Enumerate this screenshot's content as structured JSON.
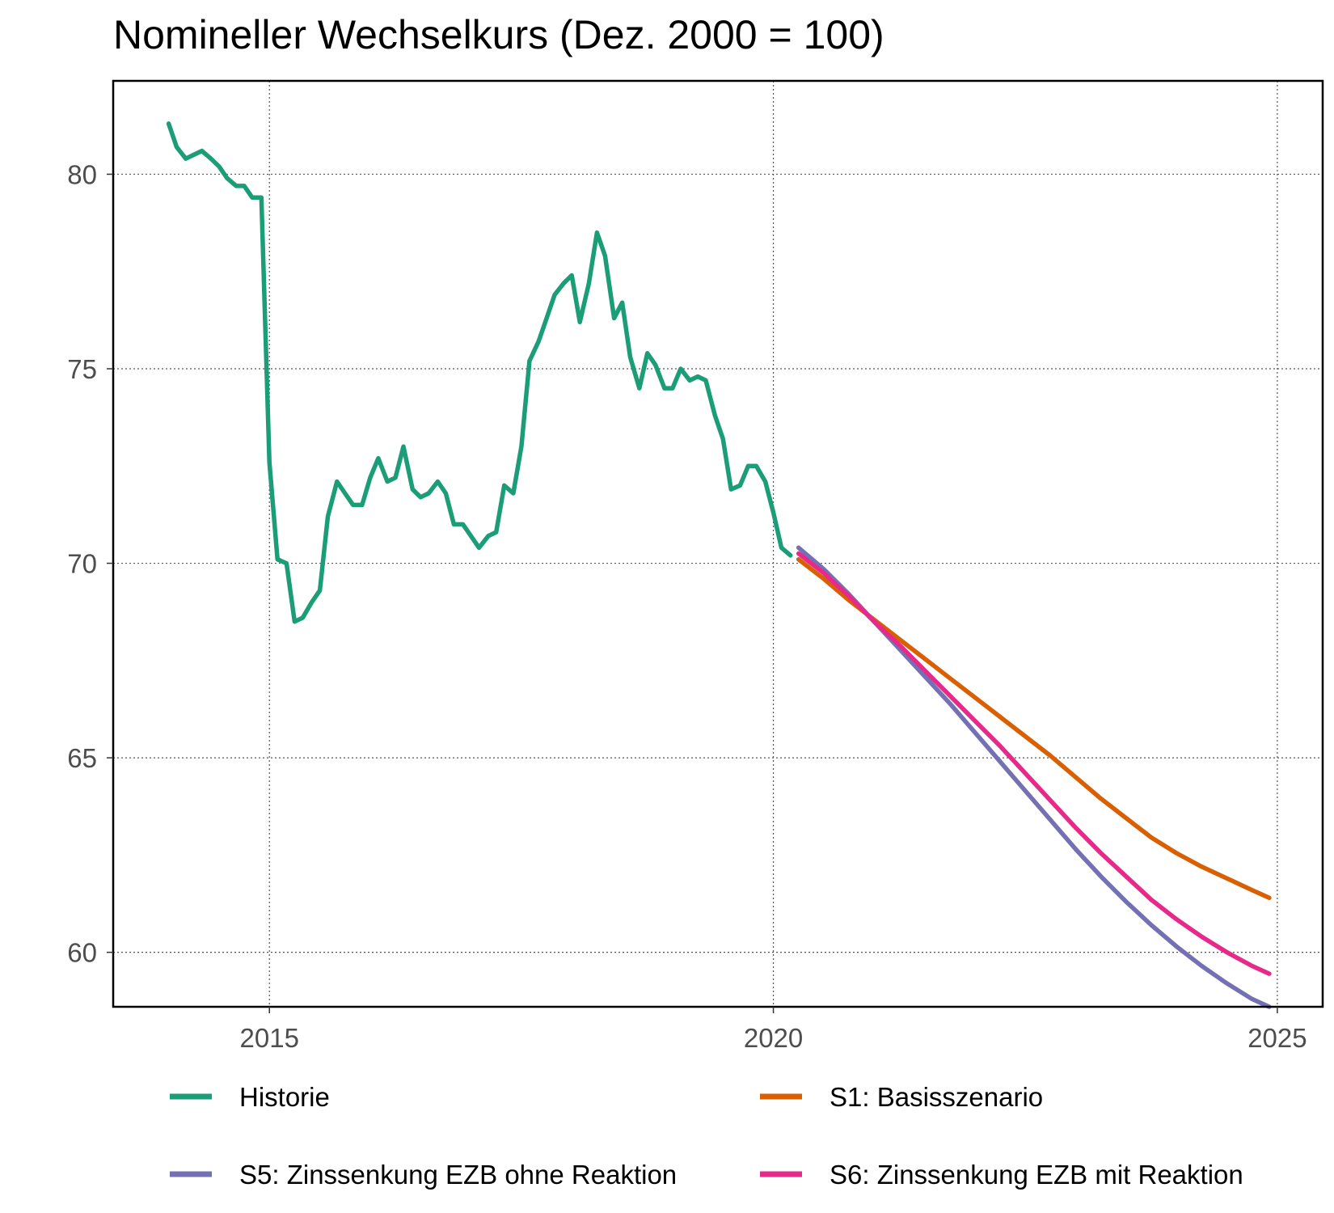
{
  "title": "Nomineller Wechselkurs (Dez. 2000 = 100)",
  "chart_data": {
    "type": "line",
    "title": "Nomineller Wechselkurs (Dez. 2000 = 100)",
    "xlabel": "",
    "ylabel": "",
    "xlim": [
      2013.45,
      2025.45
    ],
    "ylim": [
      58.6,
      82.4
    ],
    "x_ticks": [
      2015,
      2020,
      2025
    ],
    "x_tick_labels": [
      "2015",
      "2020",
      "2025"
    ],
    "y_ticks": [
      60,
      65,
      70,
      75,
      80
    ],
    "y_tick_labels": [
      "60",
      "65",
      "70",
      "75",
      "80"
    ],
    "grid": "dotted",
    "legend_position": "bottom",
    "series": [
      {
        "name": "Historie",
        "color": "#1B9E77",
        "x": [
          2014.0,
          2014.08,
          2014.17,
          2014.25,
          2014.33,
          2014.42,
          2014.5,
          2014.58,
          2014.67,
          2014.75,
          2014.83,
          2014.92,
          2015.0,
          2015.08,
          2015.17,
          2015.25,
          2015.33,
          2015.42,
          2015.5,
          2015.58,
          2015.67,
          2015.75,
          2015.83,
          2015.92,
          2016.0,
          2016.08,
          2016.17,
          2016.25,
          2016.33,
          2016.42,
          2016.5,
          2016.58,
          2016.67,
          2016.75,
          2016.83,
          2016.92,
          2017.0,
          2017.08,
          2017.17,
          2017.25,
          2017.33,
          2017.42,
          2017.5,
          2017.58,
          2017.67,
          2017.75,
          2017.83,
          2017.92,
          2018.0,
          2018.08,
          2018.17,
          2018.25,
          2018.33,
          2018.42,
          2018.5,
          2018.58,
          2018.67,
          2018.75,
          2018.83,
          2018.92,
          2019.0,
          2019.08,
          2019.17,
          2019.25,
          2019.33,
          2019.42,
          2019.5,
          2019.58,
          2019.67,
          2019.75,
          2019.83,
          2019.92,
          2020.0,
          2020.08,
          2020.17
        ],
        "values": [
          81.3,
          80.7,
          80.4,
          80.5,
          80.6,
          80.4,
          80.2,
          79.9,
          79.7,
          79.7,
          79.4,
          79.4,
          72.6,
          70.1,
          70.0,
          68.5,
          68.6,
          69.0,
          69.3,
          71.2,
          72.1,
          71.8,
          71.5,
          71.5,
          72.2,
          72.7,
          72.1,
          72.2,
          73.0,
          71.9,
          71.7,
          71.8,
          72.1,
          71.8,
          71.0,
          71.0,
          70.7,
          70.4,
          70.7,
          70.8,
          72.0,
          71.8,
          73.0,
          75.2,
          75.7,
          76.3,
          76.9,
          77.2,
          77.4,
          76.2,
          77.2,
          78.5,
          77.9,
          76.3,
          76.7,
          75.3,
          74.5,
          75.4,
          75.1,
          74.5,
          74.5,
          75.0,
          74.7,
          74.8,
          74.7,
          73.8,
          73.2,
          71.9,
          72.0,
          72.5,
          72.5,
          72.1,
          71.3,
          70.4,
          70.2
        ]
      },
      {
        "name": "S1: Basisszenario",
        "color": "#D95F02",
        "x": [
          2020.25,
          2020.5,
          2020.75,
          2021.0,
          2021.25,
          2021.5,
          2021.75,
          2022.0,
          2022.25,
          2022.5,
          2022.75,
          2023.0,
          2023.25,
          2023.5,
          2023.75,
          2024.0,
          2024.25,
          2024.5,
          2024.75,
          2024.92
        ],
        "values": [
          70.1,
          69.6,
          69.05,
          68.55,
          68.05,
          67.55,
          67.05,
          66.55,
          66.05,
          65.55,
          65.05,
          64.5,
          63.95,
          63.45,
          62.95,
          62.55,
          62.2,
          61.9,
          61.6,
          61.4
        ]
      },
      {
        "name": "S5: Zinssenkung EZB ohne Reaktion",
        "color": "#7570B3",
        "x": [
          2020.25,
          2020.5,
          2020.75,
          2021.0,
          2021.25,
          2021.5,
          2021.75,
          2022.0,
          2022.25,
          2022.5,
          2022.75,
          2023.0,
          2023.25,
          2023.5,
          2023.75,
          2024.0,
          2024.25,
          2024.5,
          2024.75,
          2024.92
        ],
        "values": [
          70.4,
          69.85,
          69.2,
          68.5,
          67.8,
          67.1,
          66.4,
          65.65,
          64.9,
          64.15,
          63.4,
          62.65,
          61.95,
          61.3,
          60.7,
          60.15,
          59.65,
          59.2,
          58.8,
          58.6
        ]
      },
      {
        "name": "S6: Zinssenkung EZB mit Reaktion",
        "color": "#E7298A",
        "x": [
          2020.25,
          2020.5,
          2020.75,
          2021.0,
          2021.25,
          2021.5,
          2021.75,
          2022.0,
          2022.25,
          2022.5,
          2022.75,
          2023.0,
          2023.25,
          2023.5,
          2023.75,
          2024.0,
          2024.25,
          2024.5,
          2024.75,
          2024.92
        ],
        "values": [
          70.25,
          69.75,
          69.15,
          68.5,
          67.9,
          67.25,
          66.6,
          65.95,
          65.3,
          64.6,
          63.9,
          63.2,
          62.55,
          61.95,
          61.35,
          60.85,
          60.4,
          60.0,
          59.65,
          59.45
        ]
      }
    ]
  }
}
